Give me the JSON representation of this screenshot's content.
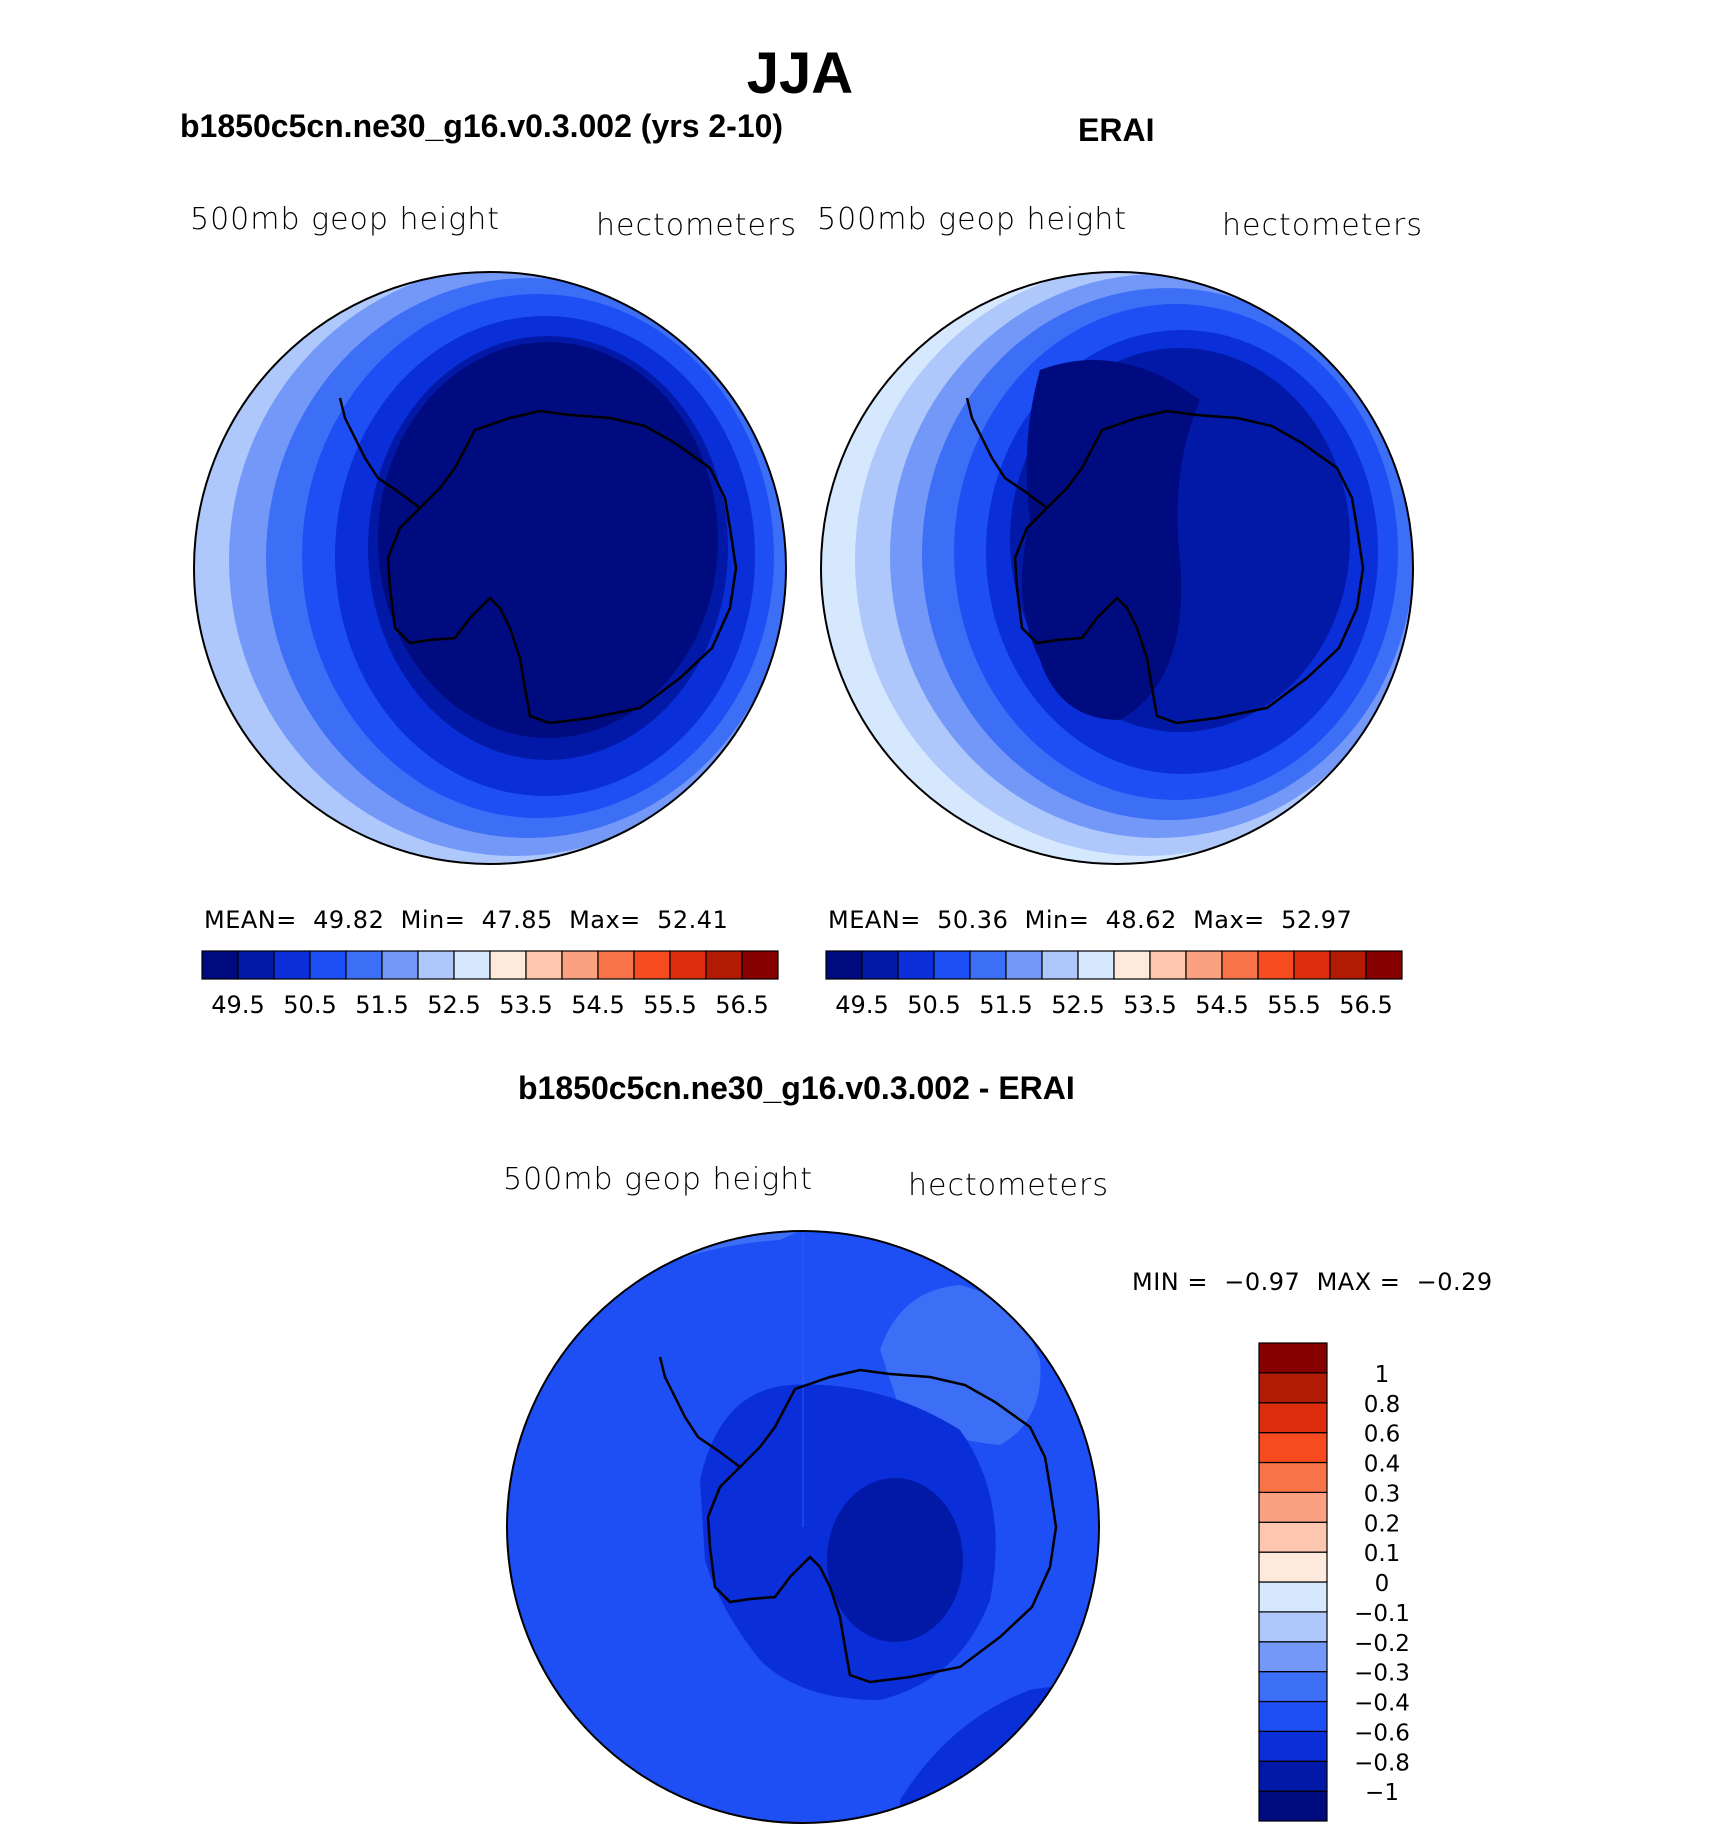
{
  "title": "JJA",
  "variable": "500mb geop height",
  "units": "hectometers",
  "panels": [
    {
      "title": "b1850c5cn.ne30_g16.v0.3.002 (yrs 2-10)",
      "mean_label": "MEAN=",
      "mean": "49.82",
      "min_label": "Min=",
      "min": "47.85",
      "max_label": "Max=",
      "max": "52.41"
    },
    {
      "title": "ERAI",
      "mean_label": "MEAN=",
      "mean": "50.36",
      "min_label": "Min=",
      "min": "48.62",
      "max_label": "Max=",
      "max": "52.97"
    },
    {
      "title": "b1850c5cn.ne30_g16.v0.3.002 - ERAI",
      "min_label": "MIN =",
      "min": "−0.97",
      "max_label": "MAX =",
      "max": "−0.29"
    }
  ],
  "colorbar_top": {
    "colors": [
      "#000b80",
      "#0219a8",
      "#0a2ed8",
      "#1d4ff5",
      "#3c6ef6",
      "#7398f8",
      "#aec8fb",
      "#d6e8fe",
      "#feeadc",
      "#fdc6ae",
      "#fba080",
      "#f87448",
      "#f64a1f",
      "#dc2e0c",
      "#b11a04",
      "#860000"
    ],
    "tick_labels": [
      "49.5",
      "50.5",
      "51.5",
      "52.5",
      "53.5",
      "54.5",
      "55.5",
      "56.5"
    ]
  },
  "colorbar_diff": {
    "colors": [
      "#000b80",
      "#0219a8",
      "#0a2ed8",
      "#1d4ff5",
      "#3c6ef6",
      "#7398f8",
      "#aec8fb",
      "#d6e8fe",
      "#feeadc",
      "#fdc6ae",
      "#fba080",
      "#f87448",
      "#f64a1f",
      "#dc2e0c",
      "#b11a04",
      "#860000"
    ],
    "tick_labels": [
      "−1",
      "−0.8",
      "−0.6",
      "−0.4",
      "−0.3",
      "−0.2",
      "−0.1",
      "0",
      "0.1",
      "0.2",
      "0.3",
      "0.4",
      "0.6",
      "0.8",
      "1"
    ]
  }
}
